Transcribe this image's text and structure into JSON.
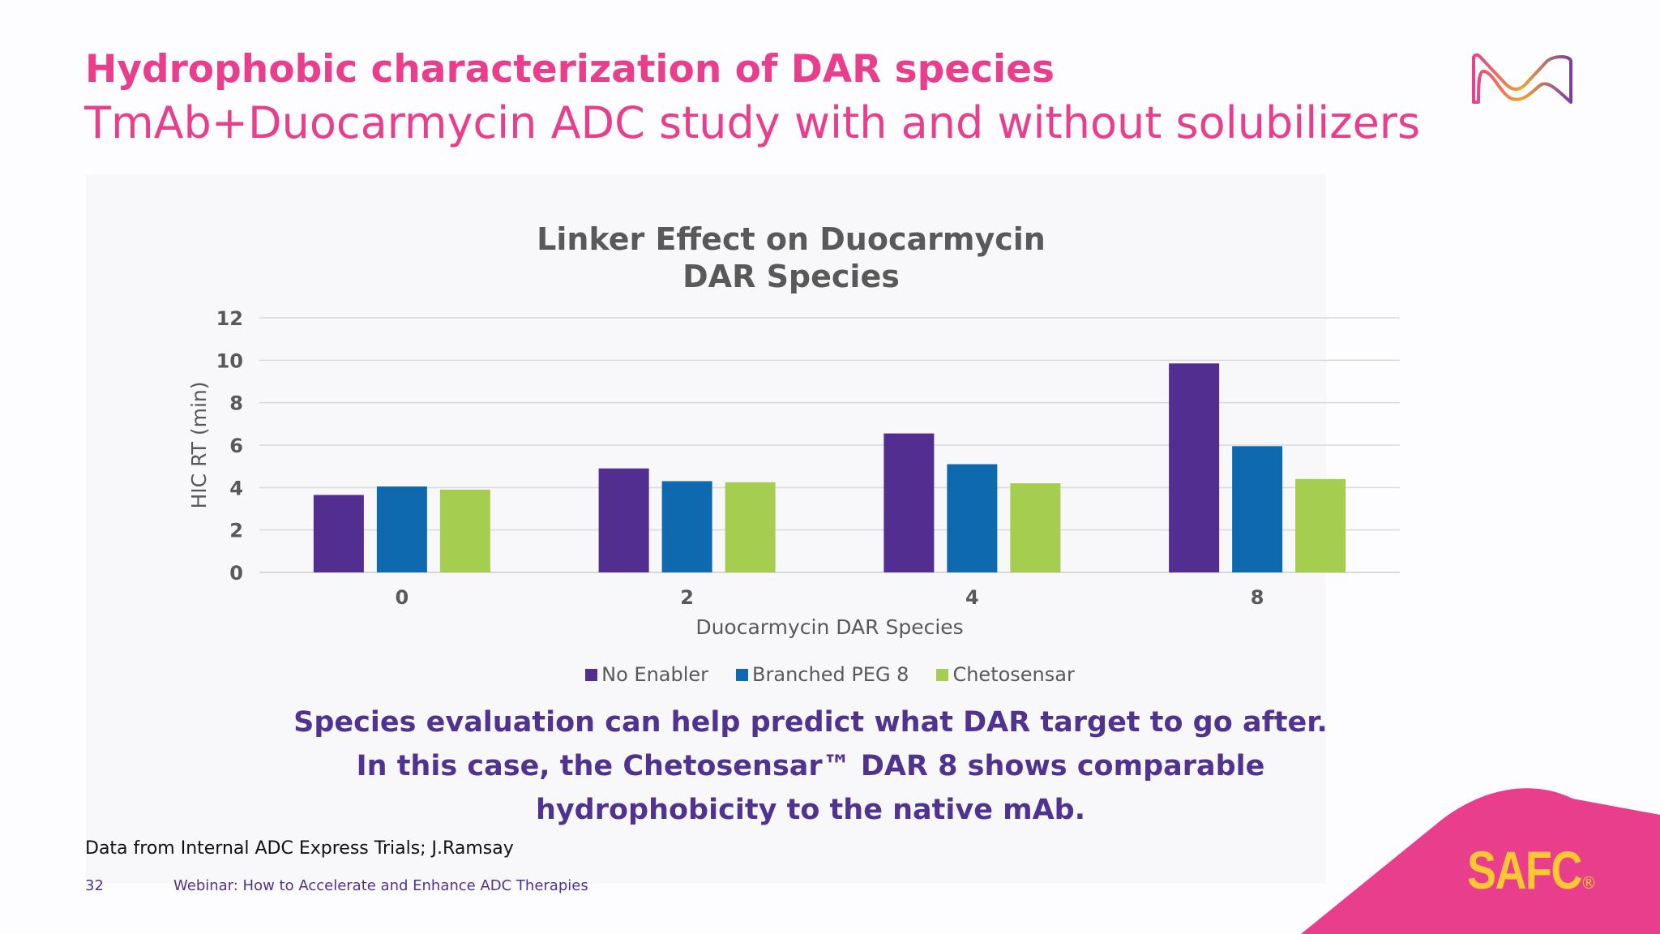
{
  "header": {
    "title": "Hydrophobic characterization of DAR species",
    "subtitle": "TmAb+Duocarmycin ADC study with and without solubilizers"
  },
  "chart_data": {
    "type": "bar",
    "title_lines": [
      "Linker Effect on Duocarmycin",
      "DAR Species"
    ],
    "xlabel": "Duocarmycin DAR Species",
    "ylabel": "HIC RT (min)",
    "categories": [
      "0",
      "2",
      "4",
      "8"
    ],
    "ylim": [
      0,
      12
    ],
    "yticks": [
      0,
      2,
      4,
      6,
      8,
      10,
      12
    ],
    "grid": true,
    "legend_position": "bottom",
    "series": [
      {
        "name": "No Enabler",
        "color": "#532e91",
        "values": [
          3.65,
          4.9,
          6.55,
          9.85
        ]
      },
      {
        "name": "Branched PEG 8",
        "color": "#0f69af",
        "values": [
          4.05,
          4.3,
          5.1,
          5.95
        ]
      },
      {
        "name": "Chetosensar",
        "color": "#a5cd50",
        "values": [
          3.9,
          4.25,
          4.2,
          4.4
        ]
      }
    ]
  },
  "message": {
    "lines": [
      "Species evaluation can help predict what DAR target to go after.",
      "In this case, the Chetosensar™ DAR 8 shows comparable",
      "hydrophobicity to the native mAb."
    ]
  },
  "footer": {
    "source": "Data from Internal ADC Express Trials; J.Ramsay",
    "page_number": "32",
    "webinar_title": "Webinar: How to Accelerate and Enhance ADC Therapies",
    "brand": "SAFC",
    "brand_mark": "®"
  },
  "colors": {
    "accent_pink": "#e83e8c",
    "brand_purple": "#503291",
    "brand_yellow": "#ffc832"
  },
  "icons": {
    "logo": "m-wave-logo-icon"
  }
}
